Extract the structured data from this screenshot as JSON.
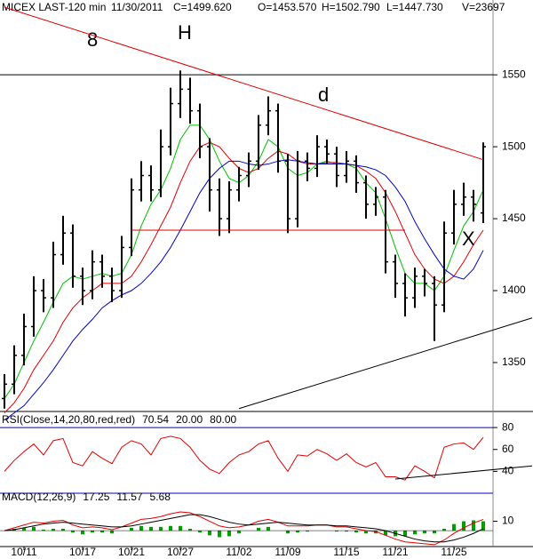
{
  "chart_data": [
    {
      "type": "ohlc",
      "title": "MICEX LAST-120 min",
      "date": "11/30/2011",
      "stats": [
        {
          "text": "C=1499.620",
          "color": "#008000"
        },
        {
          "text": "O=1453.570",
          "color": "#008000"
        },
        {
          "text": "H=1502.790",
          "color": "#000000"
        },
        {
          "text": "L=1447.730",
          "color": "#000000"
        },
        {
          "text": "V=23697",
          "color": "#000000"
        }
      ],
      "categories": [
        null,
        null,
        "10/11",
        null,
        null,
        null,
        null,
        null,
        "10/17",
        null,
        null,
        null,
        null,
        "10/21",
        null,
        null,
        null,
        null,
        "10/27",
        null,
        null,
        null,
        null,
        null,
        "11/02",
        null,
        null,
        null,
        null,
        "11/09",
        null,
        null,
        null,
        null,
        null,
        "11/15",
        null,
        null,
        null,
        null,
        "11/21",
        null,
        null,
        null,
        null,
        null,
        "11/25",
        null,
        null,
        null
      ],
      "open": [
        1325,
        1335,
        1355,
        1375,
        1400,
        1395,
        1425,
        1440,
        1410,
        1400,
        1420,
        1410,
        1400,
        1430,
        1470,
        1480,
        1470,
        1500,
        1530,
        1540,
        1525,
        1500,
        1470,
        1450,
        1470,
        1480,
        1490,
        1515,
        1525,
        1490,
        1450,
        1490,
        1485,
        1500,
        1495,
        1480,
        1490,
        1475,
        1460,
        1465,
        1420,
        1405,
        1395,
        1410,
        1405,
        1390,
        1440,
        1460,
        1465,
        1454
      ],
      "high": [
        1342,
        1362,
        1384,
        1410,
        1408,
        1434,
        1452,
        1446,
        1416,
        1428,
        1425,
        1416,
        1438,
        1478,
        1490,
        1487,
        1512,
        1541,
        1553,
        1548,
        1530,
        1506,
        1478,
        1476,
        1486,
        1496,
        1522,
        1535,
        1530,
        1495,
        1497,
        1496,
        1508,
        1505,
        1500,
        1497,
        1494,
        1480,
        1472,
        1470,
        1425,
        1412,
        1416,
        1415,
        1410,
        1448,
        1470,
        1475,
        1470,
        1503
      ],
      "low": [
        1318,
        1328,
        1348,
        1368,
        1385,
        1388,
        1418,
        1402,
        1390,
        1394,
        1402,
        1392,
        1395,
        1424,
        1462,
        1462,
        1465,
        1494,
        1520,
        1516,
        1492,
        1455,
        1438,
        1440,
        1462,
        1472,
        1484,
        1508,
        1482,
        1440,
        1444,
        1476,
        1479,
        1488,
        1472,
        1475,
        1468,
        1450,
        1452,
        1412,
        1395,
        1382,
        1388,
        1396,
        1365,
        1385,
        1432,
        1452,
        1448,
        1447
      ],
      "close": [
        1335,
        1355,
        1375,
        1400,
        1395,
        1425,
        1440,
        1410,
        1400,
        1420,
        1410,
        1400,
        1430,
        1470,
        1480,
        1470,
        1500,
        1530,
        1540,
        1525,
        1500,
        1470,
        1450,
        1470,
        1480,
        1490,
        1515,
        1525,
        1490,
        1450,
        1490,
        1485,
        1500,
        1495,
        1480,
        1490,
        1475,
        1460,
        1465,
        1420,
        1405,
        1395,
        1410,
        1405,
        1390,
        1440,
        1460,
        1465,
        1460,
        1500
      ],
      "color": "#000000",
      "series": [
        {
          "color": "#00c000",
          "values": [
            1325,
            1335,
            1350,
            1365,
            1378,
            1392,
            1405,
            1410,
            1408,
            1410,
            1412,
            1410,
            1412,
            1425,
            1445,
            1460,
            1470,
            1485,
            1505,
            1515,
            1515,
            1505,
            1490,
            1478,
            1475,
            1480,
            1490,
            1505,
            1500,
            1485,
            1480,
            1482,
            1488,
            1490,
            1488,
            1488,
            1485,
            1475,
            1468,
            1450,
            1430,
            1412,
            1405,
            1405,
            1400,
            1410,
            1428,
            1445,
            1455,
            1470
          ]
        },
        {
          "color": "#e00000",
          "values": [
            1315,
            1322,
            1332,
            1345,
            1355,
            1365,
            1378,
            1388,
            1395,
            1400,
            1405,
            1405,
            1405,
            1410,
            1420,
            1432,
            1445,
            1458,
            1475,
            1490,
            1500,
            1503,
            1500,
            1492,
            1485,
            1482,
            1485,
            1492,
            1497,
            1495,
            1490,
            1488,
            1488,
            1489,
            1489,
            1488,
            1487,
            1483,
            1478,
            1468,
            1455,
            1440,
            1425,
            1415,
            1408,
            1405,
            1410,
            1420,
            1432,
            1442
          ]
        },
        {
          "color": "#0000c0",
          "values": [
            1310,
            1315,
            1320,
            1328,
            1336,
            1345,
            1355,
            1365,
            1373,
            1380,
            1388,
            1393,
            1397,
            1400,
            1405,
            1412,
            1420,
            1430,
            1442,
            1455,
            1468,
            1478,
            1485,
            1490,
            1490,
            1488,
            1487,
            1488,
            1490,
            1491,
            1490,
            1489,
            1488,
            1488,
            1488,
            1488,
            1487,
            1486,
            1484,
            1480,
            1472,
            1462,
            1448,
            1436,
            1425,
            1415,
            1410,
            1408,
            1415,
            1428
          ]
        }
      ],
      "ylim": [
        1316,
        1602
      ],
      "yticks": [
        1350,
        1400,
        1450,
        1500,
        1550
      ],
      "hlines": [
        {
          "value": 1550,
          "color": "#000000"
        },
        {
          "value": 1442,
          "from": 13,
          "to": 41,
          "color": "#e00000"
        }
      ],
      "trendlines": [
        {
          "x": [
            0,
            49
          ],
          "y": [
            1597,
            1491
          ],
          "color": "#e00000"
        },
        {
          "x": [
            24,
            54
          ],
          "y": [
            1318,
            1381
          ],
          "color": "#000000"
        }
      ],
      "annotations": [
        {
          "text": "8",
          "color": "#008000"
        },
        {
          "text": "H",
          "color": "#e00000"
        },
        {
          "text": "d",
          "color": "#e00000"
        },
        {
          "text": "X",
          "color": "#e00000"
        }
      ]
    },
    {
      "type": "line",
      "legend": [
        {
          "text": "RSI(Close,14,20,80,red,red)",
          "color": "#000000"
        },
        {
          "text": "70.54",
          "color": "#e00000"
        },
        {
          "text": "20.00",
          "color": "#0000c0"
        },
        {
          "text": "80.00",
          "color": "#0000c0"
        }
      ],
      "values": [
        40,
        50,
        58,
        65,
        55,
        68,
        70,
        48,
        45,
        58,
        52,
        47,
        62,
        68,
        65,
        55,
        70,
        72,
        70,
        62,
        50,
        42,
        38,
        48,
        55,
        58,
        65,
        68,
        52,
        40,
        55,
        54,
        60,
        56,
        50,
        56,
        48,
        44,
        48,
        35,
        35,
        32,
        45,
        40,
        34,
        62,
        65,
        66,
        60,
        71
      ],
      "color": "#e00000",
      "ylim": [
        20,
        89
      ],
      "yticks": [
        40,
        60,
        80
      ],
      "hlines": [
        {
          "value": 80,
          "color": "#0000c0"
        },
        {
          "value": 20,
          "color": "#0000c0"
        }
      ],
      "trendlines": [
        {
          "x": [
            40,
            54
          ],
          "y": [
            33,
            45
          ],
          "color": "#000000"
        }
      ]
    },
    {
      "type": "macd",
      "legend": [
        {
          "text": "MACD(12,26,9)",
          "color": "#000000"
        },
        {
          "text": "17.25",
          "color": "#e00000"
        },
        {
          "text": "11.57",
          "color": "#000000"
        },
        {
          "text": "5.68",
          "color": "#008000"
        }
      ],
      "series": [
        {
          "color": "#e00000",
          "values": [
            0,
            3,
            6,
            9,
            8,
            10,
            11,
            6,
            3,
            4,
            3,
            1,
            4,
            8,
            12,
            13,
            15,
            18,
            20,
            19,
            15,
            10,
            5,
            3,
            4,
            6,
            10,
            12,
            9,
            5,
            5,
            5,
            6,
            6,
            4,
            4,
            2,
            0,
            -1,
            -5,
            -9,
            -12,
            -13,
            -14,
            -15,
            -10,
            -3,
            3,
            8,
            12
          ]
        },
        {
          "color": "#000000",
          "values": [
            0,
            1,
            3,
            5,
            7,
            8,
            9,
            8,
            7,
            6,
            5,
            4,
            4,
            5,
            7,
            9,
            11,
            13,
            15,
            17,
            17,
            15,
            12,
            9,
            7,
            6,
            7,
            8,
            9,
            8,
            7,
            6,
            6,
            6,
            5,
            5,
            4,
            3,
            2,
            0,
            -3,
            -6,
            -9,
            -11,
            -12,
            -12,
            -10,
            -7,
            -3,
            2
          ]
        }
      ],
      "histogram": {
        "color": "#00a000",
        "values": [
          0,
          2,
          3,
          4,
          1,
          2,
          2,
          -2,
          -4,
          -2,
          -2,
          -3,
          0,
          3,
          5,
          4,
          4,
          5,
          5,
          2,
          -2,
          -5,
          -7,
          -6,
          -3,
          0,
          3,
          4,
          0,
          -3,
          -2,
          -1,
          0,
          0,
          -1,
          -1,
          -2,
          -3,
          -3,
          -5,
          -6,
          -6,
          -4,
          -3,
          -3,
          2,
          7,
          10,
          11,
          10
        ]
      },
      "ylim": [
        -17,
        38
      ],
      "yticks": [
        10
      ]
    }
  ]
}
